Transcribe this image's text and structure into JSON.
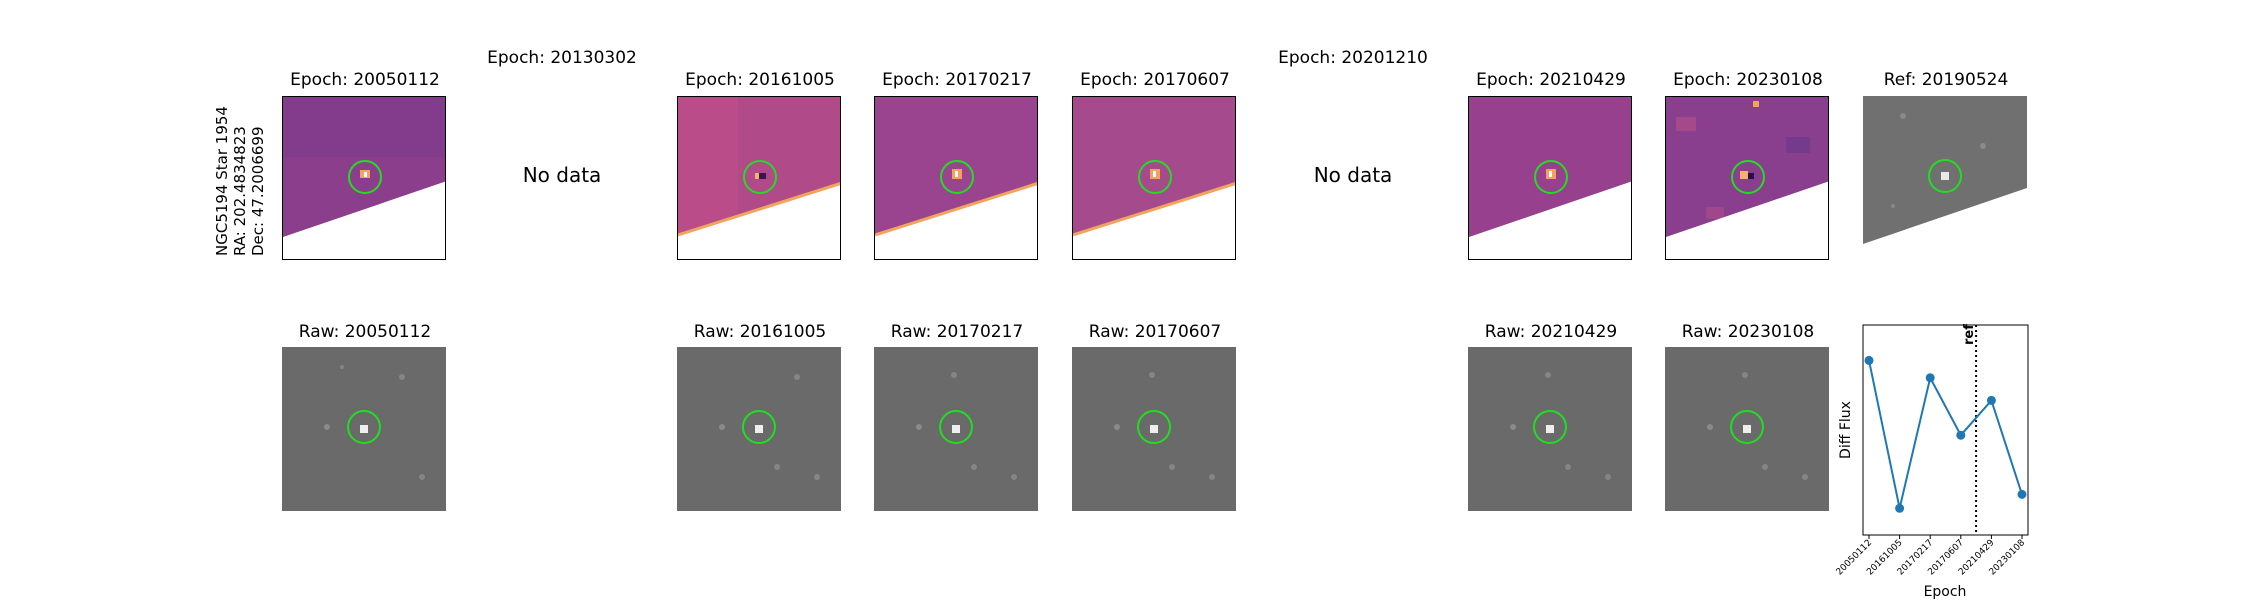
{
  "star": {
    "name": "NGC5194 Star 1954",
    "ra": "RA: 202.4834823",
    "dec": "Dec: 47.2006699"
  },
  "no_data_text": "No data",
  "epochs": [
    {
      "id": "20050112",
      "diff_title": "Epoch: 20050112",
      "raw_title": "Raw: 20050112",
      "available": true
    },
    {
      "id": "20130302",
      "diff_title": "Epoch: 20130302",
      "raw_title": "",
      "available": false
    },
    {
      "id": "20161005",
      "diff_title": "Epoch: 20161005",
      "raw_title": "Raw: 20161005",
      "available": true
    },
    {
      "id": "20170217",
      "diff_title": "Epoch: 20170217",
      "raw_title": "Raw: 20170217",
      "available": true
    },
    {
      "id": "20170607",
      "diff_title": "Epoch: 20170607",
      "raw_title": "Raw: 20170607",
      "available": true
    },
    {
      "id": "20201210",
      "diff_title": "Epoch: 20201210",
      "raw_title": "",
      "available": false
    },
    {
      "id": "20210429",
      "diff_title": "Epoch: 20210429",
      "raw_title": "Raw: 20210429",
      "available": true
    },
    {
      "id": "20230108",
      "diff_title": "Epoch: 20230108",
      "raw_title": "Raw: 20230108",
      "available": true
    }
  ],
  "reference": {
    "title": "Ref: 20190524"
  },
  "colors": {
    "marker_circle": "#22dd22",
    "diff_map": "#8c3e8a",
    "raw_gray": "#6a6a6a",
    "series": "#1f77b4"
  },
  "chart_data": {
    "type": "line",
    "title": "",
    "xlabel": "Epoch",
    "ylabel": "Diff Flux",
    "categories": [
      "20050112",
      "20161005",
      "20170217",
      "20170607",
      "20210429",
      "20230108"
    ],
    "series": [
      {
        "values": [
          0.9,
          0.05,
          0.8,
          0.47,
          0.67,
          0.13
        ]
      }
    ],
    "ylim": [
      0,
      1
    ],
    "reference_line": {
      "label": "ref",
      "after_category": "20170607"
    },
    "grid": false
  }
}
